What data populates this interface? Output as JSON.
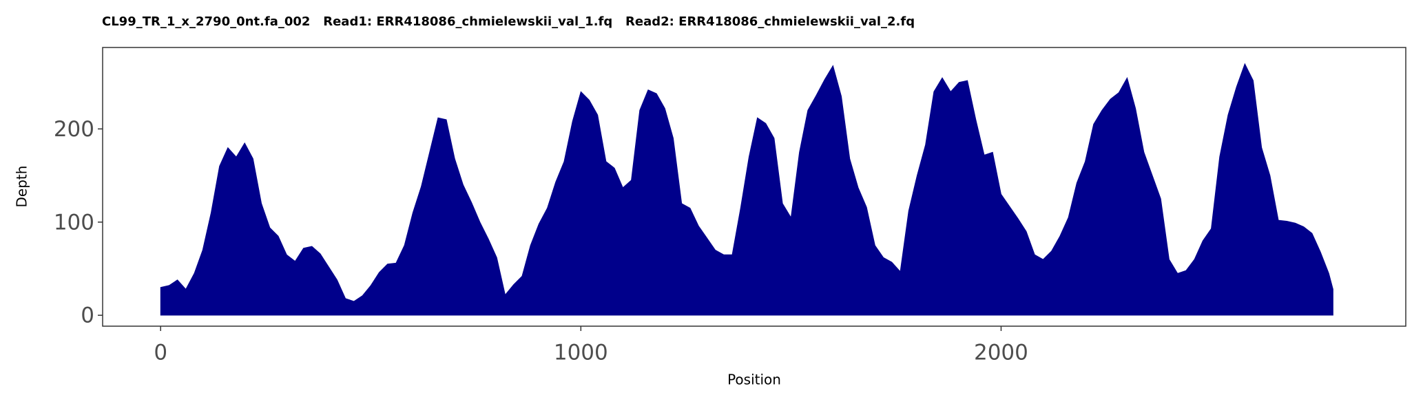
{
  "chart_data": {
    "type": "area",
    "title": "CL99_TR_1_x_2790_0nt.fa_002   Read1: ERR418086_chmielewskii_val_1.fq   Read2: ERR418086_chmielewskii_val_2.fq",
    "x_label": "Position",
    "y_label": "Depth",
    "color": "#00008b",
    "xlim": [
      -138,
      2963
    ],
    "ylim": [
      -11.7,
      287.4
    ],
    "xticks": [
      0,
      1000,
      2000
    ],
    "yticks": [
      0,
      100,
      200
    ],
    "x": [
      0,
      20,
      40,
      60,
      80,
      100,
      120,
      140,
      160,
      180,
      200,
      220,
      240,
      260,
      280,
      300,
      320,
      340,
      360,
      380,
      400,
      420,
      440,
      460,
      480,
      500,
      520,
      540,
      560,
      580,
      600,
      620,
      640,
      660,
      680,
      700,
      720,
      740,
      760,
      780,
      800,
      820,
      840,
      860,
      880,
      900,
      920,
      940,
      960,
      980,
      1000,
      1020,
      1040,
      1060,
      1080,
      1100,
      1120,
      1140,
      1160,
      1180,
      1200,
      1220,
      1240,
      1260,
      1280,
      1300,
      1320,
      1340,
      1360,
      1380,
      1400,
      1420,
      1440,
      1460,
      1480,
      1500,
      1520,
      1540,
      1560,
      1580,
      1600,
      1620,
      1640,
      1660,
      1680,
      1700,
      1720,
      1740,
      1760,
      1780,
      1800,
      1820,
      1840,
      1860,
      1880,
      1900,
      1920,
      1940,
      1960,
      1980,
      2000,
      2020,
      2040,
      2060,
      2080,
      2100,
      2120,
      2140,
      2160,
      2180,
      2200,
      2220,
      2240,
      2260,
      2280,
      2300,
      2320,
      2340,
      2360,
      2380,
      2400,
      2420,
      2440,
      2460,
      2480,
      2500,
      2520,
      2540,
      2560,
      2580,
      2600,
      2620,
      2640,
      2660,
      2680,
      2700,
      2720,
      2740,
      2760,
      2780,
      2790
    ],
    "values": [
      30,
      32,
      38,
      28,
      45,
      70,
      110,
      160,
      180,
      170,
      185,
      168,
      120,
      94,
      85,
      65,
      58,
      72,
      74,
      66,
      52,
      38,
      18,
      15,
      21,
      32,
      46,
      55,
      56,
      75,
      110,
      138,
      175,
      212,
      210,
      168,
      140,
      121,
      100,
      82,
      62,
      22,
      33,
      42,
      75,
      98,
      115,
      143,
      165,
      208,
      240,
      231,
      215,
      165,
      158,
      137,
      145,
      220,
      242,
      238,
      222,
      190,
      120,
      115,
      96,
      83,
      70,
      65,
      65,
      115,
      170,
      212,
      206,
      190,
      120,
      105,
      175,
      220,
      236,
      253,
      268,
      235,
      168,
      137,
      116,
      75,
      62,
      57,
      47,
      112,
      150,
      183,
      240,
      255,
      240,
      250,
      252,
      210,
      172,
      175,
      130,
      117,
      104,
      90,
      65,
      60,
      69,
      85,
      105,
      142,
      165,
      205,
      220,
      232,
      239,
      255,
      222,
      175,
      150,
      125,
      60,
      45,
      48,
      60,
      80,
      93,
      170,
      215,
      245,
      270,
      252,
      180,
      150,
      102,
      101,
      99,
      95,
      88,
      68,
      45,
      28
    ]
  }
}
